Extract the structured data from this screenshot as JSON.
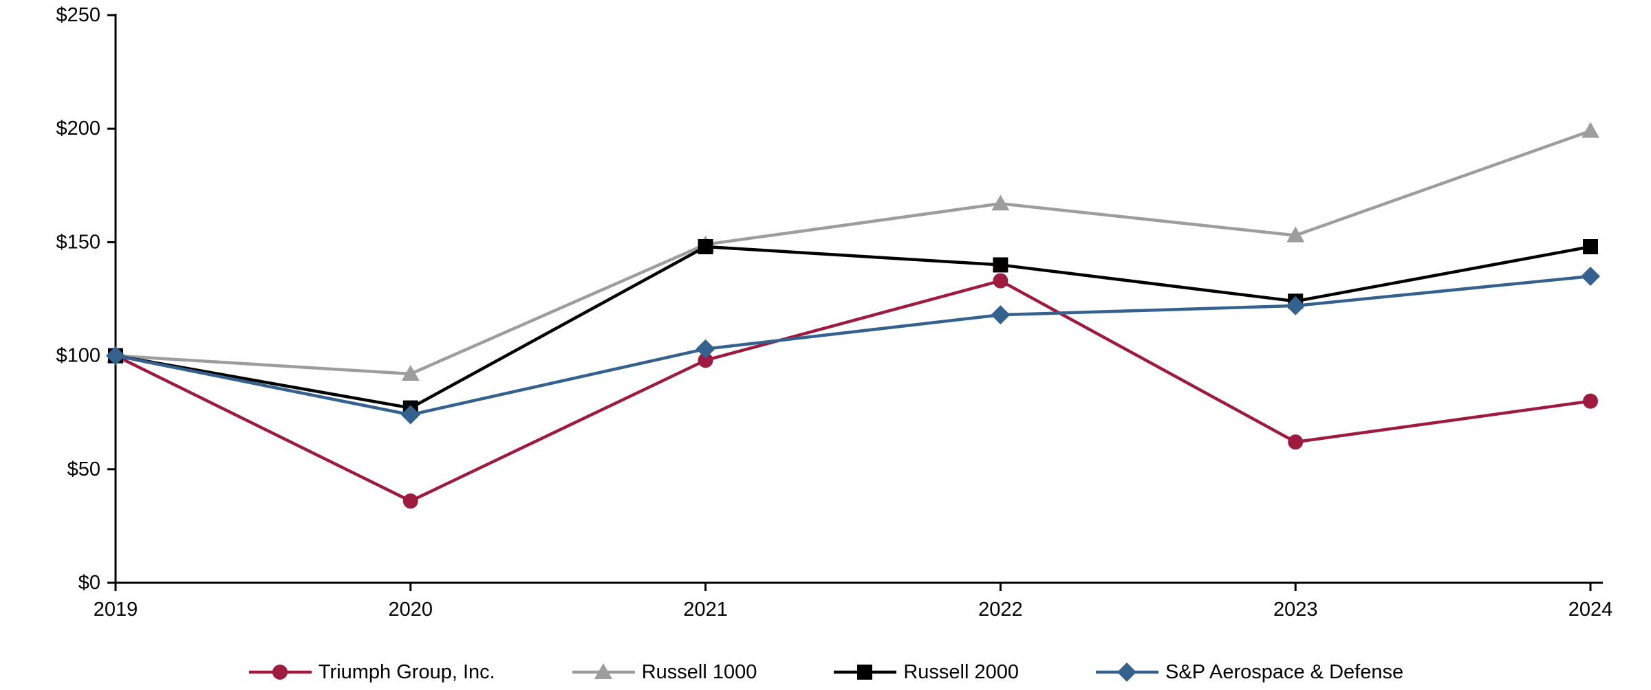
{
  "chart_data": {
    "type": "line",
    "title": "",
    "categories": [
      "2019",
      "2020",
      "2021",
      "2022",
      "2023",
      "2024"
    ],
    "y_ticks": [
      "$0",
      "$50",
      "$100",
      "$150",
      "$200",
      "$250"
    ],
    "ylim": [
      0,
      250
    ],
    "y_tick_step": 50,
    "grid": false,
    "legend_position": "bottom",
    "axis_color": "#000000",
    "series": [
      {
        "name": "Triumph Group, Inc.",
        "marker": "circle",
        "color": "#9E1B3F",
        "values": [
          100,
          36,
          98,
          133,
          62,
          80
        ]
      },
      {
        "name": "Russell 1000",
        "marker": "triangle",
        "color": "#9D9D9D",
        "values": [
          100,
          92,
          149,
          167,
          153,
          199
        ]
      },
      {
        "name": "Russell 2000",
        "marker": "square",
        "color": "#000000",
        "values": [
          100,
          77,
          148,
          140,
          124,
          148
        ]
      },
      {
        "name": "S&P Aerospace & Defense",
        "marker": "diamond",
        "color": "#35618E",
        "values": [
          100,
          74,
          103,
          118,
          122,
          135
        ]
      }
    ]
  }
}
